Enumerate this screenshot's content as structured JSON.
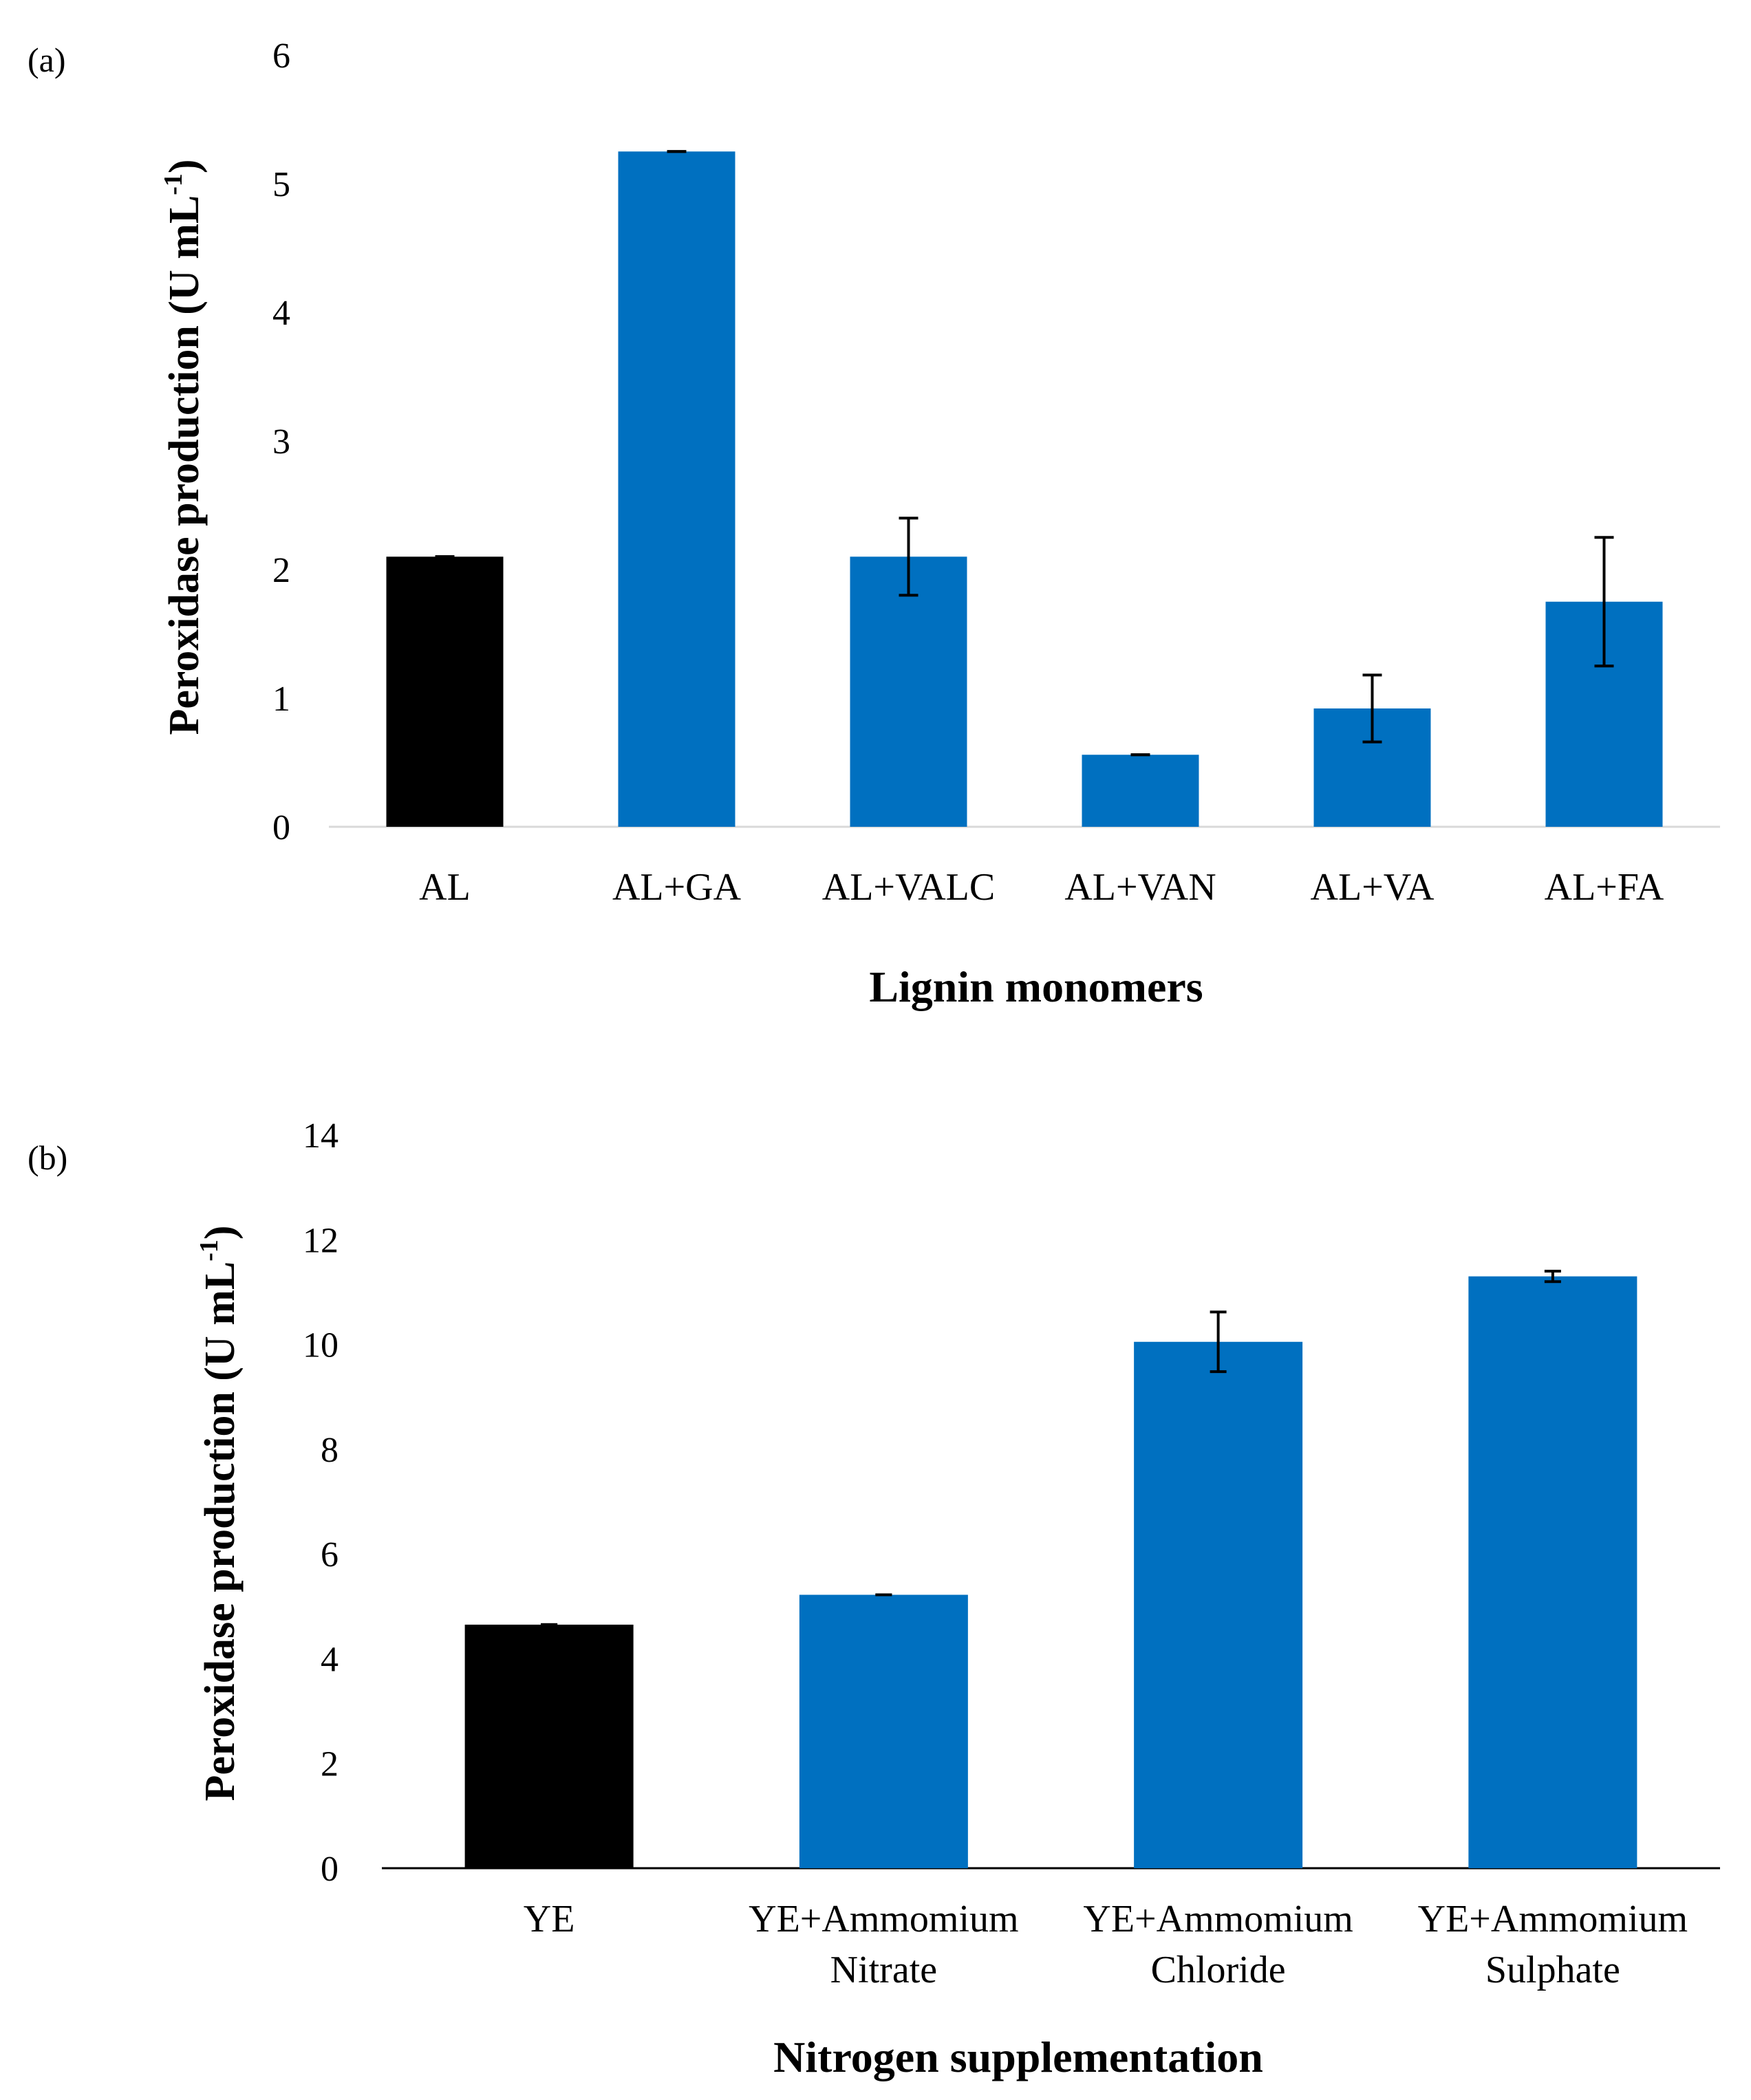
{
  "chart_data": [
    {
      "panel_label": "(a)",
      "type": "bar",
      "title": "",
      "categories": [
        "AL",
        "AL+GA",
        "AL+VALC",
        "AL+VAN",
        "AL+VA",
        "AL+FA"
      ],
      "values": [
        2.1,
        5.25,
        2.1,
        0.56,
        0.92,
        1.75
      ],
      "errors": [
        0.0,
        0.0,
        0.3,
        0.0,
        0.26,
        0.5
      ],
      "colors": [
        "#000000",
        "#0070C0",
        "#0070C0",
        "#0070C0",
        "#0070C0",
        "#0070C0"
      ],
      "xlabel": "Lignin monomers",
      "ylabel_main": "Peroxidase production (U mL",
      "ylabel_sup": "-1",
      "ylabel_close": ")",
      "ylim": [
        0,
        6
      ],
      "yticks": [
        "0",
        "1",
        "2",
        "3",
        "4",
        "5",
        "6"
      ],
      "grid": false
    },
    {
      "panel_label": "(b)",
      "type": "bar",
      "title": "",
      "categories": [
        [
          "YE"
        ],
        [
          "YE+Ammomium",
          "Nitrate"
        ],
        [
          "YE+Ammomium",
          "Chloride"
        ],
        [
          "YE+Ammomium",
          "Sulphate"
        ]
      ],
      "values": [
        4.65,
        5.22,
        10.05,
        11.3
      ],
      "errors": [
        0.0,
        0.0,
        0.57,
        0.1
      ],
      "colors": [
        "#000000",
        "#0070C0",
        "#0070C0",
        "#0070C0"
      ],
      "xlabel": "Nitrogen supplementation",
      "ylabel_main": "Peroxidase production (U mL",
      "ylabel_sup": "-1",
      "ylabel_close": ")",
      "ylim": [
        0,
        14
      ],
      "yticks": [
        "0",
        "2",
        "4",
        "6",
        "8",
        "10",
        "12",
        "14"
      ],
      "grid": false
    }
  ]
}
